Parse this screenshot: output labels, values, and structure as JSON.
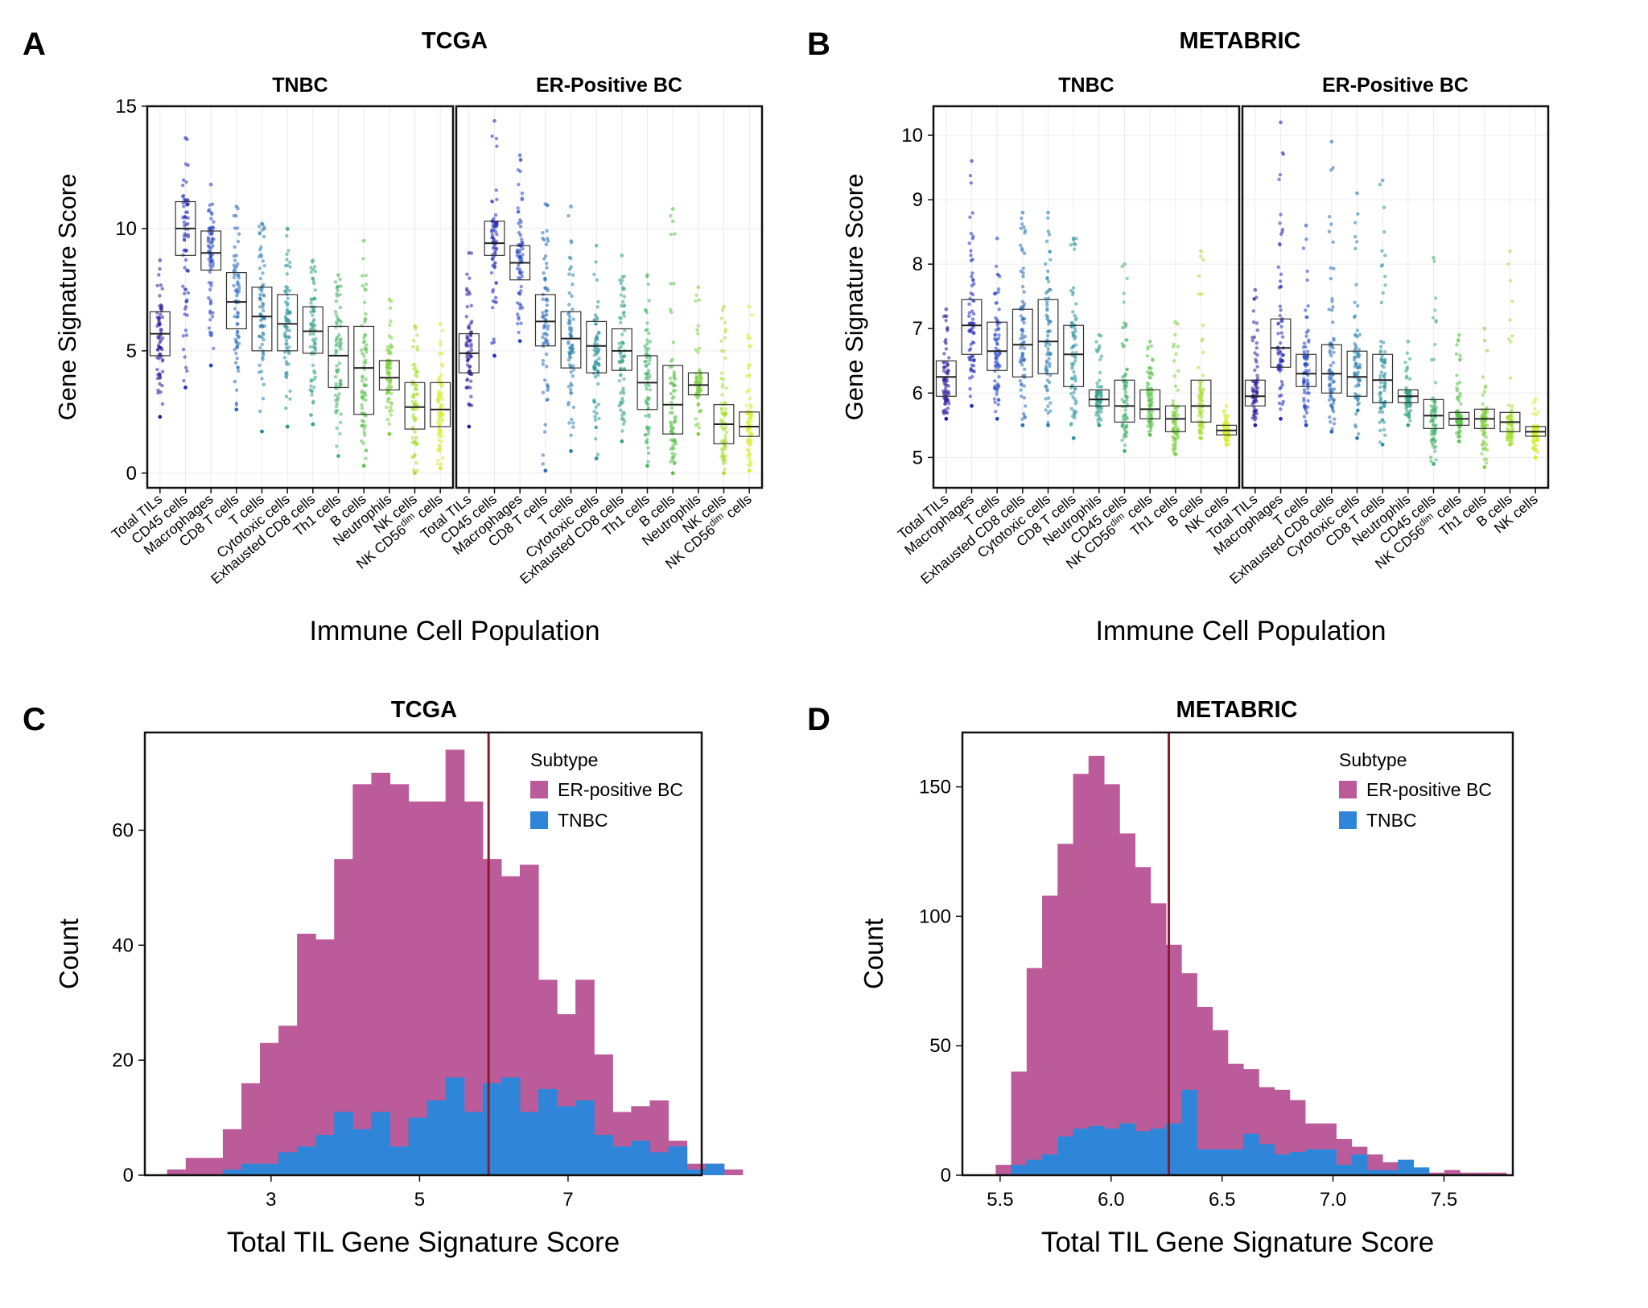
{
  "panels": {
    "A": {
      "letter": "A",
      "title": "TCGA"
    },
    "B": {
      "letter": "B",
      "title": "METABRIC"
    },
    "C": {
      "letter": "C",
      "title": "TCGA"
    },
    "D": {
      "letter": "D",
      "title": "METABRIC"
    }
  },
  "colors": {
    "er": "#bc5b9a",
    "tnbc": "#2f86d8",
    "cutoff": "#8b1a2b",
    "frame": "#111111",
    "grid": "#ececec"
  },
  "chart_data": [
    {
      "id": "A",
      "type": "box",
      "title": "TCGA",
      "ylabel": "Gene Signature Score",
      "xlabel": "Immune Cell Population",
      "ylim": [
        -0.6,
        15
      ],
      "yticks": [
        0,
        5,
        10,
        15
      ],
      "facets": [
        {
          "name": "TNBC",
          "categories": [
            "Total TILs",
            "CD45 cells",
            "Macrophages",
            "CD8 T cells",
            "T cells",
            "Cytotoxic cells",
            "Exhausted CD8 cells",
            "Th1 cells",
            "B cells",
            "Neutrophils",
            "NK cells",
            "NK CD56dim cells"
          ],
          "boxes": [
            {
              "q1": 4.8,
              "median": 5.7,
              "q3": 6.6,
              "min": 2.3,
              "max": 8.7
            },
            {
              "q1": 8.9,
              "median": 10.0,
              "q3": 11.1,
              "min": 3.5,
              "max": 13.7
            },
            {
              "q1": 8.3,
              "median": 9.0,
              "q3": 9.9,
              "min": 4.4,
              "max": 11.8
            },
            {
              "q1": 5.9,
              "median": 7.0,
              "q3": 8.2,
              "min": 2.6,
              "max": 10.9
            },
            {
              "q1": 5.0,
              "median": 6.4,
              "q3": 7.6,
              "min": 1.7,
              "max": 10.2
            },
            {
              "q1": 5.0,
              "median": 6.1,
              "q3": 7.3,
              "min": 1.9,
              "max": 10.0
            },
            {
              "q1": 4.9,
              "median": 5.8,
              "q3": 6.8,
              "min": 2.0,
              "max": 8.7
            },
            {
              "q1": 3.5,
              "median": 4.8,
              "q3": 6.0,
              "min": 0.7,
              "max": 8.1
            },
            {
              "q1": 2.4,
              "median": 4.3,
              "q3": 6.0,
              "min": 0.3,
              "max": 9.5
            },
            {
              "q1": 3.4,
              "median": 3.9,
              "q3": 4.6,
              "min": 1.6,
              "max": 7.1
            },
            {
              "q1": 1.8,
              "median": 2.7,
              "q3": 3.7,
              "min": 0.0,
              "max": 6.0
            },
            {
              "q1": 1.9,
              "median": 2.6,
              "q3": 3.7,
              "min": 0.2,
              "max": 6.1
            }
          ]
        },
        {
          "name": "ER-Positive BC",
          "categories": [
            "Total TILs",
            "CD45 cells",
            "Macrophages",
            "CD8 T cells",
            "T cells",
            "Cytotoxic cells",
            "Exhausted CD8 cells",
            "Th1 cells",
            "B cells",
            "Neutrophils",
            "NK cells",
            "NK CD56dim cells"
          ],
          "boxes": [
            {
              "q1": 4.1,
              "median": 4.9,
              "q3": 5.7,
              "min": 1.9,
              "max": 9.0
            },
            {
              "q1": 8.9,
              "median": 9.4,
              "q3": 10.3,
              "min": 4.8,
              "max": 14.4
            },
            {
              "q1": 7.9,
              "median": 8.6,
              "q3": 9.3,
              "min": 5.4,
              "max": 13.0
            },
            {
              "q1": 5.2,
              "median": 6.2,
              "q3": 7.3,
              "min": 0.1,
              "max": 11.0
            },
            {
              "q1": 4.3,
              "median": 5.5,
              "q3": 6.6,
              "min": 0.9,
              "max": 10.9
            },
            {
              "q1": 4.1,
              "median": 5.2,
              "q3": 6.2,
              "min": 0.6,
              "max": 9.3
            },
            {
              "q1": 4.2,
              "median": 5.0,
              "q3": 5.9,
              "min": 1.3,
              "max": 8.9
            },
            {
              "q1": 2.6,
              "median": 3.7,
              "q3": 4.8,
              "min": 0.3,
              "max": 8.1
            },
            {
              "q1": 1.6,
              "median": 2.8,
              "q3": 4.4,
              "min": 0.0,
              "max": 10.8
            },
            {
              "q1": 3.2,
              "median": 3.6,
              "q3": 4.1,
              "min": 1.6,
              "max": 7.6
            },
            {
              "q1": 1.2,
              "median": 2.0,
              "q3": 2.8,
              "min": 0.0,
              "max": 6.8
            },
            {
              "q1": 1.5,
              "median": 1.9,
              "q3": 2.5,
              "min": 0.1,
              "max": 6.8
            }
          ]
        }
      ]
    },
    {
      "id": "B",
      "type": "box",
      "title": "METABRIC",
      "ylabel": "Gene Signature Score",
      "xlabel": "Immune Cell Population",
      "ylim": [
        4.53,
        10.45
      ],
      "yticks": [
        5,
        6,
        7,
        8,
        9,
        10
      ],
      "facets": [
        {
          "name": "TNBC",
          "categories": [
            "Total TILs",
            "Macrophages",
            "T cells",
            "Exhausted CD8 cells",
            "Cytotoxic cells",
            "CD8 T cells",
            "Neutrophils",
            "CD45 cells",
            "NK CD56dim cells",
            "Th1 cells",
            "B cells",
            "NK cells"
          ],
          "boxes": [
            {
              "q1": 5.95,
              "median": 6.25,
              "q3": 6.5,
              "min": 5.6,
              "max": 7.3
            },
            {
              "q1": 6.6,
              "median": 7.05,
              "q3": 7.45,
              "min": 5.8,
              "max": 9.6
            },
            {
              "q1": 6.35,
              "median": 6.65,
              "q3": 7.1,
              "min": 5.6,
              "max": 8.4
            },
            {
              "q1": 6.25,
              "median": 6.75,
              "q3": 7.3,
              "min": 5.5,
              "max": 8.8
            },
            {
              "q1": 6.3,
              "median": 6.8,
              "q3": 7.45,
              "min": 5.5,
              "max": 8.8
            },
            {
              "q1": 6.1,
              "median": 6.6,
              "q3": 7.05,
              "min": 5.3,
              "max": 8.4
            },
            {
              "q1": 5.8,
              "median": 5.9,
              "q3": 6.05,
              "min": 5.5,
              "max": 6.9
            },
            {
              "q1": 5.55,
              "median": 5.8,
              "q3": 6.2,
              "min": 5.1,
              "max": 8.0
            },
            {
              "q1": 5.6,
              "median": 5.75,
              "q3": 6.05,
              "min": 5.35,
              "max": 6.8
            },
            {
              "q1": 5.4,
              "median": 5.6,
              "q3": 5.8,
              "min": 5.05,
              "max": 7.1
            },
            {
              "q1": 5.55,
              "median": 5.8,
              "q3": 6.2,
              "min": 5.3,
              "max": 8.2
            },
            {
              "q1": 5.35,
              "median": 5.42,
              "q3": 5.5,
              "min": 5.2,
              "max": 5.8
            }
          ]
        },
        {
          "name": "ER-Positive BC",
          "categories": [
            "Total TILs",
            "Macrophages",
            "T cells",
            "Exhausted CD8 cells",
            "Cytotoxic cells",
            "CD8 T cells",
            "Neutrophils",
            "CD45 cells",
            "NK CD56dim cells",
            "Th1 cells",
            "B cells",
            "NK cells"
          ],
          "boxes": [
            {
              "q1": 5.8,
              "median": 5.95,
              "q3": 6.2,
              "min": 5.5,
              "max": 7.6
            },
            {
              "q1": 6.4,
              "median": 6.7,
              "q3": 7.15,
              "min": 5.6,
              "max": 10.2
            },
            {
              "q1": 6.1,
              "median": 6.3,
              "q3": 6.6,
              "min": 5.5,
              "max": 8.6
            },
            {
              "q1": 6.0,
              "median": 6.3,
              "q3": 6.75,
              "min": 5.4,
              "max": 9.9
            },
            {
              "q1": 5.95,
              "median": 6.25,
              "q3": 6.65,
              "min": 5.3,
              "max": 9.1
            },
            {
              "q1": 5.85,
              "median": 6.2,
              "q3": 6.6,
              "min": 5.2,
              "max": 9.3
            },
            {
              "q1": 5.85,
              "median": 5.95,
              "q3": 6.05,
              "min": 5.5,
              "max": 6.8
            },
            {
              "q1": 5.45,
              "median": 5.65,
              "q3": 5.9,
              "min": 4.9,
              "max": 8.1
            },
            {
              "q1": 5.5,
              "median": 5.6,
              "q3": 5.7,
              "min": 5.25,
              "max": 6.9
            },
            {
              "q1": 5.45,
              "median": 5.6,
              "q3": 5.75,
              "min": 4.85,
              "max": 7.0
            },
            {
              "q1": 5.4,
              "median": 5.55,
              "q3": 5.7,
              "min": 5.2,
              "max": 8.2
            },
            {
              "q1": 5.33,
              "median": 5.4,
              "q3": 5.48,
              "min": 5.0,
              "max": 5.9
            }
          ]
        }
      ]
    },
    {
      "id": "C",
      "type": "histogram",
      "title": "TCGA",
      "xlabel": "Total TIL Gene Signature Score",
      "ylabel": "Count",
      "xlim": [
        1.3,
        8.8
      ],
      "ylim": [
        0,
        77
      ],
      "xticks": [
        3,
        5,
        7
      ],
      "yticks": [
        0,
        20,
        40,
        60
      ],
      "bin_start": 1.6,
      "bin_width": 0.25,
      "series": [
        {
          "name": "ER-positive BC",
          "values": [
            1,
            3,
            3,
            8,
            16,
            23,
            26,
            42,
            41,
            55,
            68,
            70,
            68,
            65,
            65,
            74,
            65,
            55,
            52,
            54,
            34,
            28,
            34,
            21,
            11,
            12,
            13,
            6,
            2,
            2,
            1
          ]
        },
        {
          "name": "TNBC",
          "values": [
            0,
            0,
            0,
            1,
            2,
            2,
            4,
            5,
            7,
            11,
            8,
            11,
            5,
            10,
            13,
            17,
            11,
            16,
            17,
            11,
            15,
            12,
            13,
            7,
            5,
            6,
            4,
            5,
            1,
            2,
            0
          ]
        }
      ],
      "cutoff": 5.93,
      "legend": {
        "title": "Subtype",
        "items": [
          "ER-positive BC",
          "TNBC"
        ],
        "position": "top-right"
      }
    },
    {
      "id": "D",
      "type": "histogram",
      "title": "METABRIC",
      "xlabel": "Total TIL Gene Signature Score",
      "ylabel": "Count",
      "xlim": [
        5.33,
        7.81
      ],
      "ylim": [
        0,
        171
      ],
      "xticks": [
        5.5,
        6.0,
        6.5,
        7.0,
        7.5
      ],
      "xticklabels": [
        "5.5",
        "6.0",
        "6.5",
        "7.0",
        "7.5"
      ],
      "yticks": [
        0,
        50,
        100,
        150
      ],
      "bin_start": 5.48,
      "bin_width": 0.0697,
      "series": [
        {
          "name": "ER-positive BC",
          "values": [
            4,
            40,
            80,
            108,
            128,
            155,
            162,
            151,
            132,
            119,
            105,
            89,
            78,
            65,
            56,
            43,
            41,
            34,
            33,
            29,
            20,
            20,
            14,
            11,
            8,
            5,
            4,
            2,
            1,
            2,
            1,
            1,
            1
          ]
        },
        {
          "name": "TNBC",
          "values": [
            0,
            4,
            6,
            8,
            15,
            18,
            19,
            18,
            20,
            17,
            18,
            20,
            33,
            10,
            10,
            10,
            16,
            12,
            8,
            9,
            10,
            10,
            4,
            8,
            2,
            2,
            6,
            3,
            0,
            0,
            0,
            0,
            0
          ]
        }
      ],
      "cutoff": 6.26,
      "legend": {
        "title": "Subtype",
        "items": [
          "ER-positive BC",
          "TNBC"
        ],
        "position": "top-right"
      }
    }
  ]
}
